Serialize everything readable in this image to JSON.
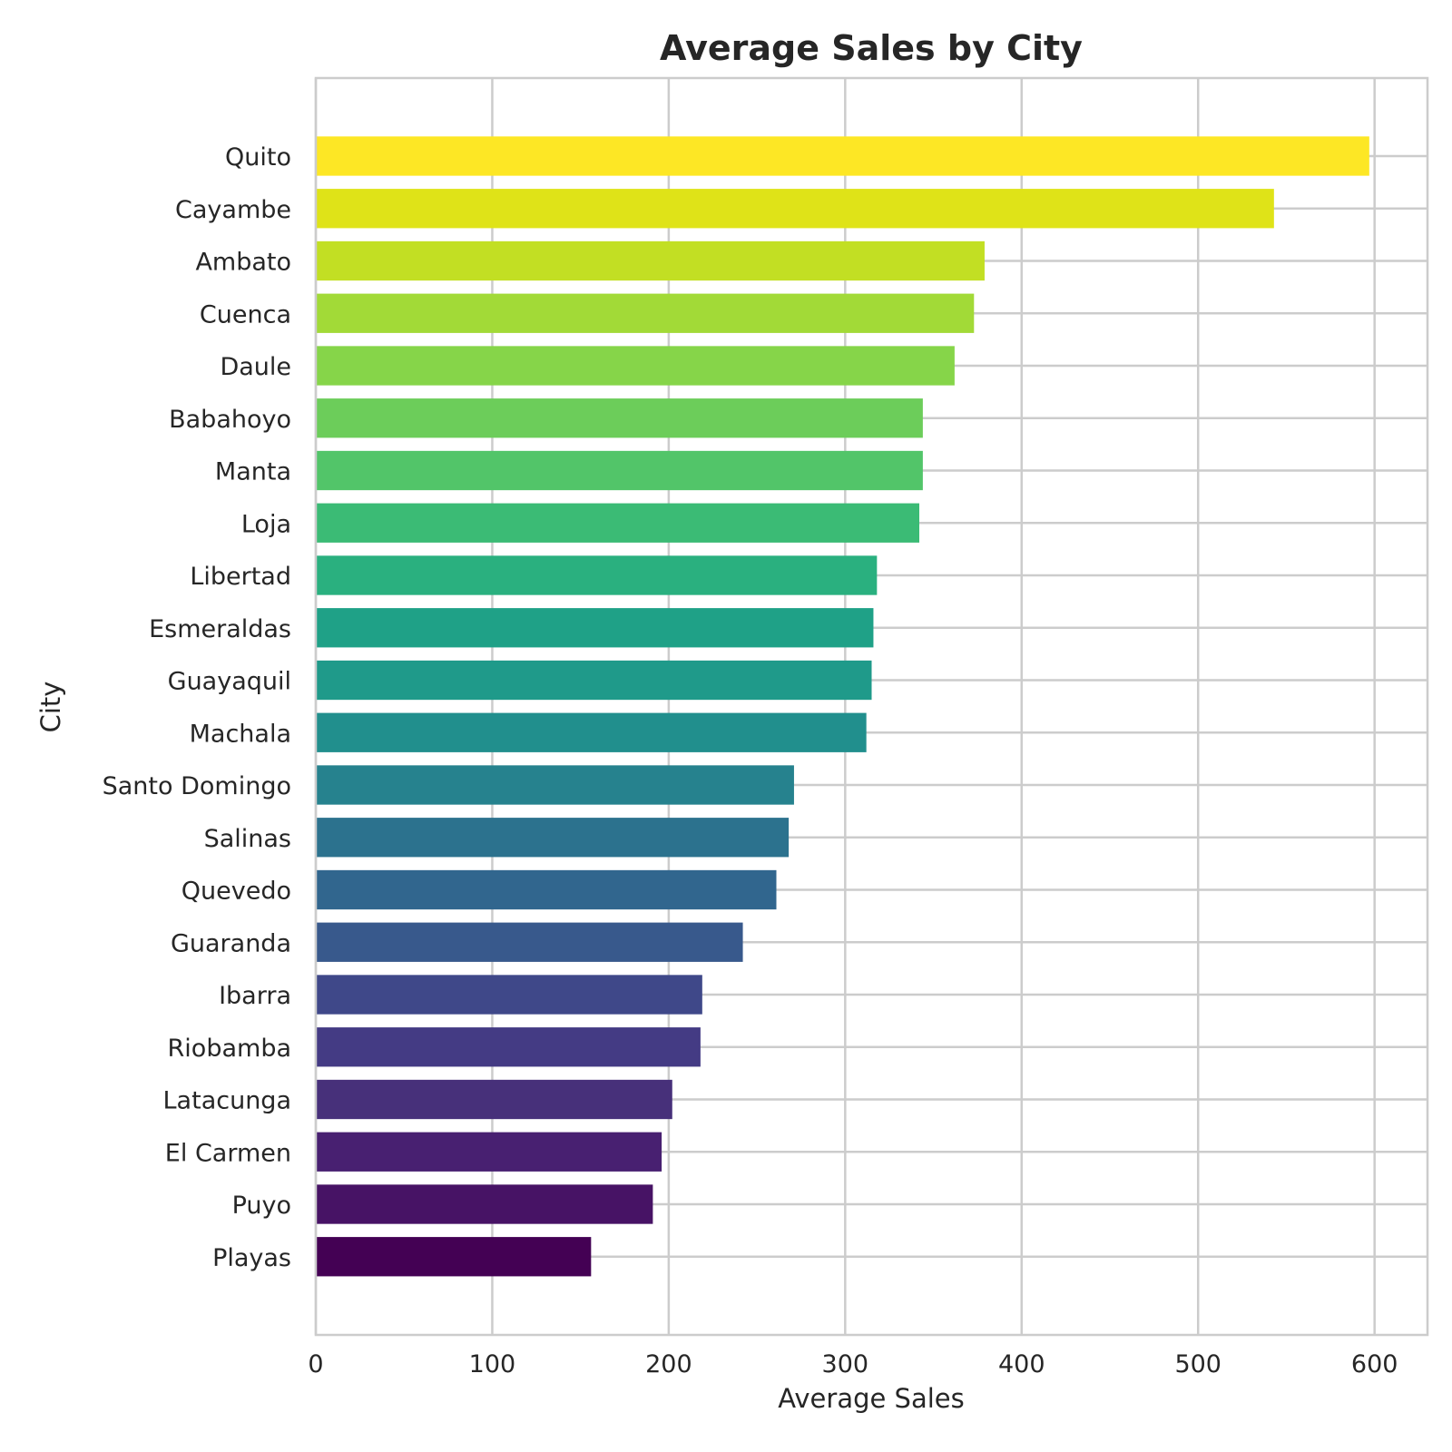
{
  "chart_data": {
    "type": "bar",
    "orientation": "horizontal",
    "title": "Average Sales by City",
    "xlabel": "Average Sales",
    "ylabel": "City",
    "xlim": [
      0,
      630
    ],
    "xticks": [
      0,
      100,
      200,
      300,
      400,
      500,
      600
    ],
    "grid": true,
    "categories": [
      "Quito",
      "Cayambe",
      "Ambato",
      "Cuenca",
      "Daule",
      "Babahoyo",
      "Manta",
      "Loja",
      "Libertad",
      "Esmeraldas",
      "Guayaquil",
      "Machala",
      "Santo Domingo",
      "Salinas",
      "Quevedo",
      "Guaranda",
      "Ibarra",
      "Riobamba",
      "Latacunga",
      "El Carmen",
      "Puyo",
      "Playas"
    ],
    "values": [
      597,
      543,
      379,
      373,
      362,
      344,
      344,
      342,
      318,
      316,
      315,
      312,
      271,
      268,
      261,
      242,
      219,
      218,
      202,
      196,
      191,
      156
    ],
    "colors": [
      "#fde725",
      "#dfe318",
      "#c2df23",
      "#a2da37",
      "#86d549",
      "#6ccd5a",
      "#52c569",
      "#3bbb75",
      "#2ab07f",
      "#1fa187",
      "#1f9a8a",
      "#218f8d",
      "#26828e",
      "#2c728e",
      "#31668e",
      "#38598c",
      "#3f4889",
      "#443b84",
      "#47307a",
      "#482071",
      "#471365",
      "#440154"
    ]
  }
}
